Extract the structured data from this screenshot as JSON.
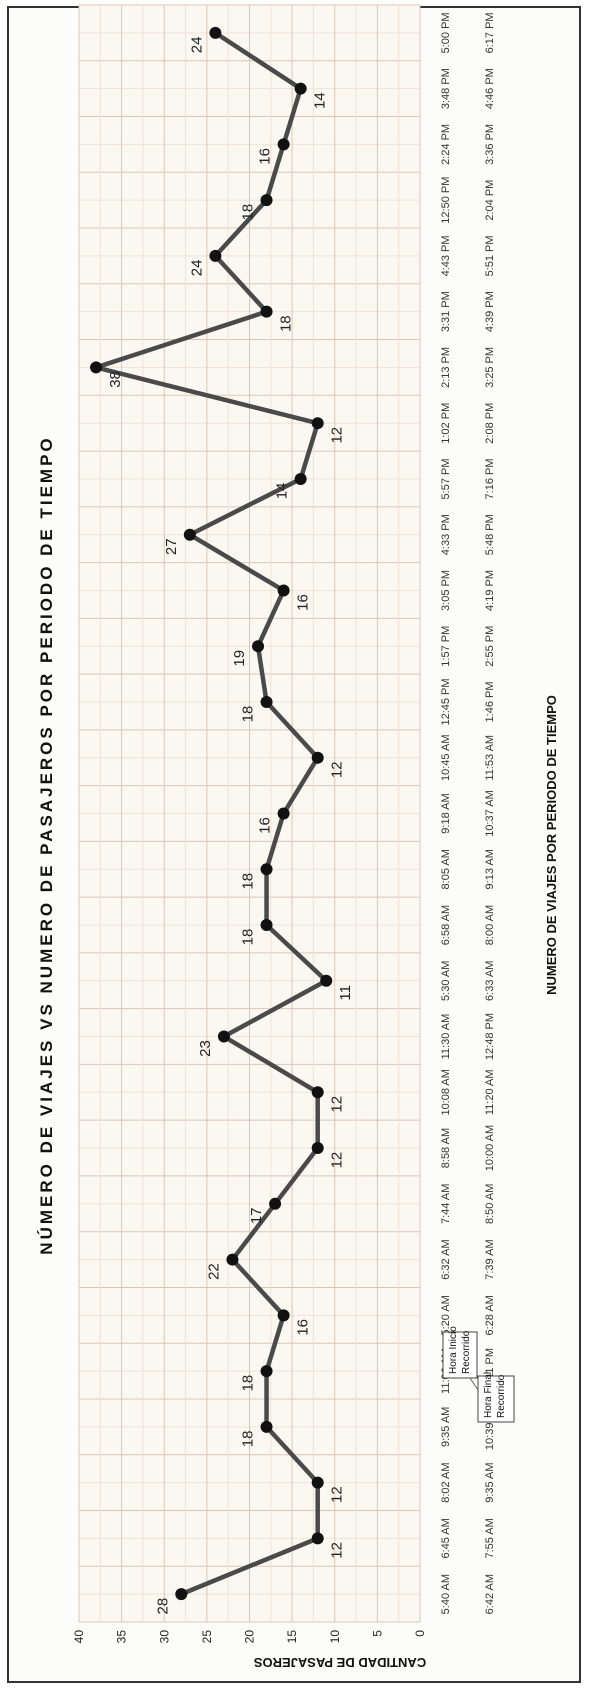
{
  "chart_data": {
    "type": "line",
    "title": "NÚMERO DE VIAJES VS NUMERO DE PASAJEROS POR PERIODO DE TIEMPO",
    "xlabel": "NUMERO DE VIAJES POR PERIODO DE TIEMPO",
    "ylabel": "CANTIDAD DE PASAJEROS",
    "ylim": [
      0,
      40
    ],
    "yticks": [
      0,
      5,
      10,
      15,
      20,
      25,
      30,
      35,
      40
    ],
    "grid": true,
    "start_times": [
      "5:40 AM",
      "6:45 AM",
      "8:02 AM",
      "9:35 AM",
      "11:06 AM",
      "5:20 AM",
      "6:32 AM",
      "7:44 AM",
      "8:58 AM",
      "10:08 AM",
      "11:30 AM",
      "5:30 AM",
      "6:58 AM",
      "8:05 AM",
      "9:18 AM",
      "10:45 AM",
      "12:45 PM",
      "1:57 PM",
      "3:05 PM",
      "4:33 PM",
      "5:57 PM",
      "1:02 PM",
      "2:13 PM",
      "3:31 PM",
      "4:43 PM",
      "12:50 PM",
      "2:24 PM",
      "3:48 PM",
      "5:00 PM"
    ],
    "end_times": [
      "6:42 AM",
      "7:55 AM",
      "9:35 AM",
      "10:39 AM",
      "12:11 PM",
      "6:28 AM",
      "7:39 AM",
      "8:50 AM",
      "10:00 AM",
      "11:20 AM",
      "12:48 PM",
      "6:33 AM",
      "8:00 AM",
      "9:13 AM",
      "10:37 AM",
      "11:53 AM",
      "1:46 PM",
      "2:55 PM",
      "4:19 PM",
      "5:48 PM",
      "7:16 PM",
      "2:08 PM",
      "3:25 PM",
      "4:39 PM",
      "5:51 PM",
      "2:04 PM",
      "3:36 PM",
      "4:46 PM",
      "6:17 PM"
    ],
    "series": [
      {
        "values": [
          28,
          12,
          12,
          18,
          18,
          16,
          22,
          17,
          12,
          12,
          23,
          11,
          18,
          18,
          16,
          12,
          18,
          19,
          16,
          27,
          14,
          12,
          38,
          18,
          24,
          18,
          16,
          14,
          24
        ]
      }
    ],
    "annotations": {
      "start_label": "Hora Inicio Recorrido",
      "end_label": "Hora Final Recorrido"
    },
    "colors": {
      "line": "#4a4a4a",
      "marker": "#111111",
      "grid": "#e6d4c4",
      "background": "#fcfcfa"
    }
  }
}
